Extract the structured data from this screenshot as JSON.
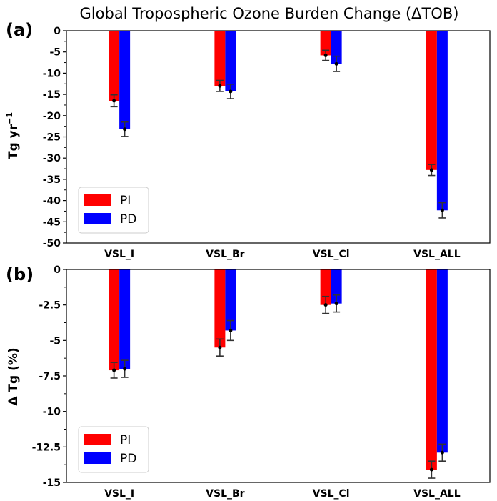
{
  "chart_data": [
    {
      "type": "bar",
      "panel_label": "(a)",
      "title": "Global Tropospheric Ozone Burden Change (ΔTOB)",
      "ylabel": "Tg yr",
      "ylabel_sup": "−1",
      "ylim": [
        -50,
        0
      ],
      "yticks": [
        0,
        -5,
        -10,
        -15,
        -20,
        -25,
        -30,
        -35,
        -40,
        -45,
        -50
      ],
      "ytick_labels": [
        "0",
        "-5",
        "-10",
        "-15",
        "-20",
        "-25",
        "-30",
        "-35",
        "-40",
        "-45",
        "-50"
      ],
      "categories": [
        "VSL_I",
        "VSL_Br",
        "VSL_Cl",
        "VSL_ALL"
      ],
      "legend_position": "lower-left",
      "series": [
        {
          "name": "PI",
          "color": "#ff0000",
          "values": [
            -16.5,
            -13.0,
            -5.8,
            -32.8
          ],
          "errors": [
            1.4,
            1.3,
            1.2,
            1.3
          ]
        },
        {
          "name": "PD",
          "color": "#0000ff",
          "values": [
            -23.2,
            -14.3,
            -7.8,
            -42.3
          ],
          "errors": [
            1.7,
            1.7,
            1.8,
            1.8
          ]
        }
      ]
    },
    {
      "type": "bar",
      "panel_label": "(b)",
      "ylabel": "Δ Tg (%)",
      "ylim": [
        -15,
        0
      ],
      "yticks": [
        0,
        -2.5,
        -5,
        -7.5,
        -10,
        -12.5,
        -15
      ],
      "ytick_labels": [
        "0",
        "-2.5",
        "-5",
        "-7.5",
        "-10",
        "-12.5",
        "-15"
      ],
      "categories": [
        "VSL_I",
        "VSL_Br",
        "VSL_Cl",
        "VSL_ALL"
      ],
      "legend_position": "lower-left",
      "series": [
        {
          "name": "PI",
          "color": "#ff0000",
          "values": [
            -7.1,
            -5.5,
            -2.5,
            -14.1
          ],
          "errors": [
            0.55,
            0.6,
            0.6,
            0.6
          ]
        },
        {
          "name": "PD",
          "color": "#0000ff",
          "values": [
            -7.0,
            -4.3,
            -2.4,
            -12.9
          ],
          "errors": [
            0.6,
            0.7,
            0.6,
            0.6
          ]
        }
      ]
    }
  ]
}
